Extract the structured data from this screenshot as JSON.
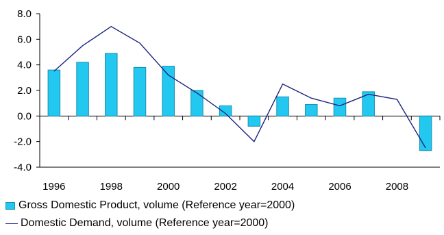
{
  "chart_data": {
    "type": "bar+line",
    "categories": [
      "1996",
      "1997",
      "1998",
      "1999",
      "2000",
      "2001",
      "2002",
      "2003",
      "2004",
      "2005",
      "2006",
      "2007",
      "2008",
      "2009"
    ],
    "x_tick_labels": [
      "1996",
      "1998",
      "2000",
      "2002",
      "2004",
      "2006",
      "2008"
    ],
    "y_tick_labels": [
      "8.0",
      "6.0",
      "4.0",
      "2.0",
      "0.0",
      "-2.0",
      "-4.0"
    ],
    "ylim": [
      -4,
      8
    ],
    "y_step": 2,
    "grid": false,
    "legend_position": "bottom",
    "series": [
      {
        "name": "Gross Domestic Product, volume (Reference year=2000)",
        "type": "bar",
        "color": "#22c8f0",
        "values": [
          3.6,
          4.2,
          4.9,
          3.8,
          3.9,
          2.0,
          0.8,
          -0.8,
          1.5,
          0.9,
          1.4,
          1.9,
          null,
          -2.7
        ]
      },
      {
        "name": "Domestic Demand, volume (Reference year=2000)",
        "type": "line",
        "color": "#1a237e",
        "values": [
          3.5,
          5.5,
          7.0,
          5.7,
          3.2,
          1.8,
          0.2,
          -2.0,
          2.5,
          1.4,
          0.8,
          1.7,
          1.3,
          -2.5
        ]
      }
    ]
  }
}
